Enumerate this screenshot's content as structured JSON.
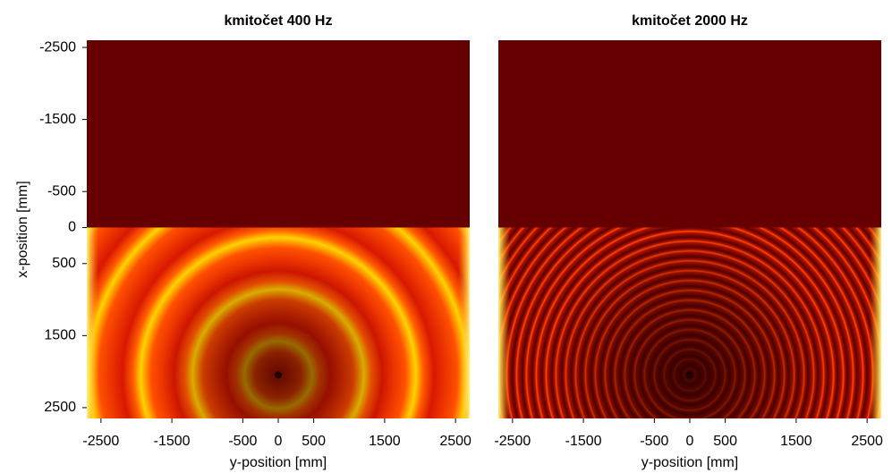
{
  "chart_data": [
    {
      "type": "heatmap",
      "title": "kmitočet 400 Hz",
      "xlabel": "y-position [mm]",
      "ylabel": "x-position [mm]",
      "xlim": [
        -2700,
        2700
      ],
      "ylim": [
        -2600,
        2650
      ],
      "xticks": [
        -2500,
        -1500,
        -500,
        0,
        500,
        1500,
        2500
      ],
      "yticks": [
        -2500,
        -1500,
        -500,
        0,
        500,
        1500,
        2500
      ]
    },
    {
      "type": "heatmap",
      "title": "kmitočet 2000 Hz",
      "xlabel": "y-position [mm]",
      "xlim": [
        -2700,
        2700
      ],
      "ylim": [
        -2600,
        2650
      ],
      "xticks": [
        -2500,
        -1500,
        -500,
        0,
        500,
        1500,
        2500
      ]
    }
  ]
}
